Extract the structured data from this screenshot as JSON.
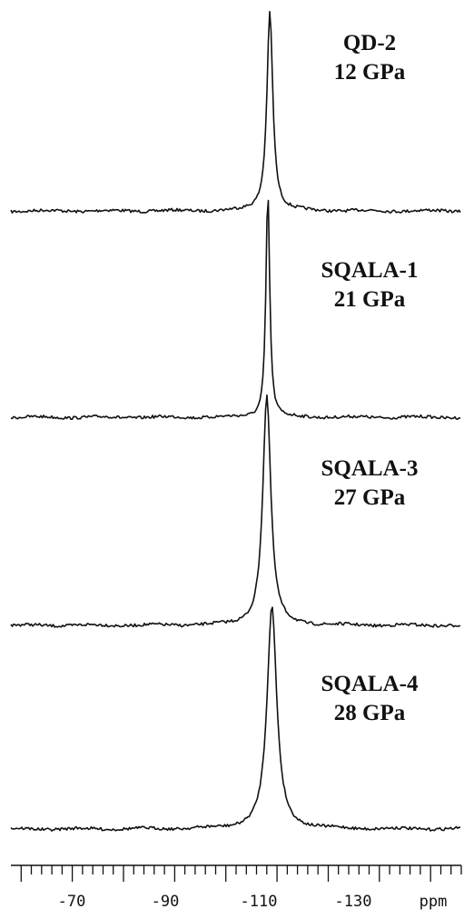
{
  "chart_data": {
    "type": "line",
    "xlabel": "ppm",
    "x_reversed": true,
    "xlim": [
      -58,
      -146
    ],
    "x_ticks": [
      -70,
      -90,
      -110,
      -130
    ],
    "x_tick_labels": [
      "-70",
      "-90",
      "-110",
      "-130"
    ],
    "minor_tick_step": 2,
    "series": [
      {
        "name": "QD-2",
        "label_line2": "12 GPa",
        "peak_ppm": -108.6,
        "fwhm_ppm": 1.4,
        "relative_height": 1.0
      },
      {
        "name": "SQALA-1",
        "label_line2": "21 GPa",
        "peak_ppm": -108.2,
        "fwhm_ppm": 0.9,
        "relative_height": 1.0
      },
      {
        "name": "SQALA-3",
        "label_line2": "27 GPa",
        "peak_ppm": -108.0,
        "fwhm_ppm": 1.9,
        "relative_height": 1.0
      },
      {
        "name": "SQALA-4",
        "label_line2": "28 GPa",
        "peak_ppm": -109.0,
        "fwhm_ppm": 2.3,
        "relative_height": 1.0
      }
    ]
  }
}
